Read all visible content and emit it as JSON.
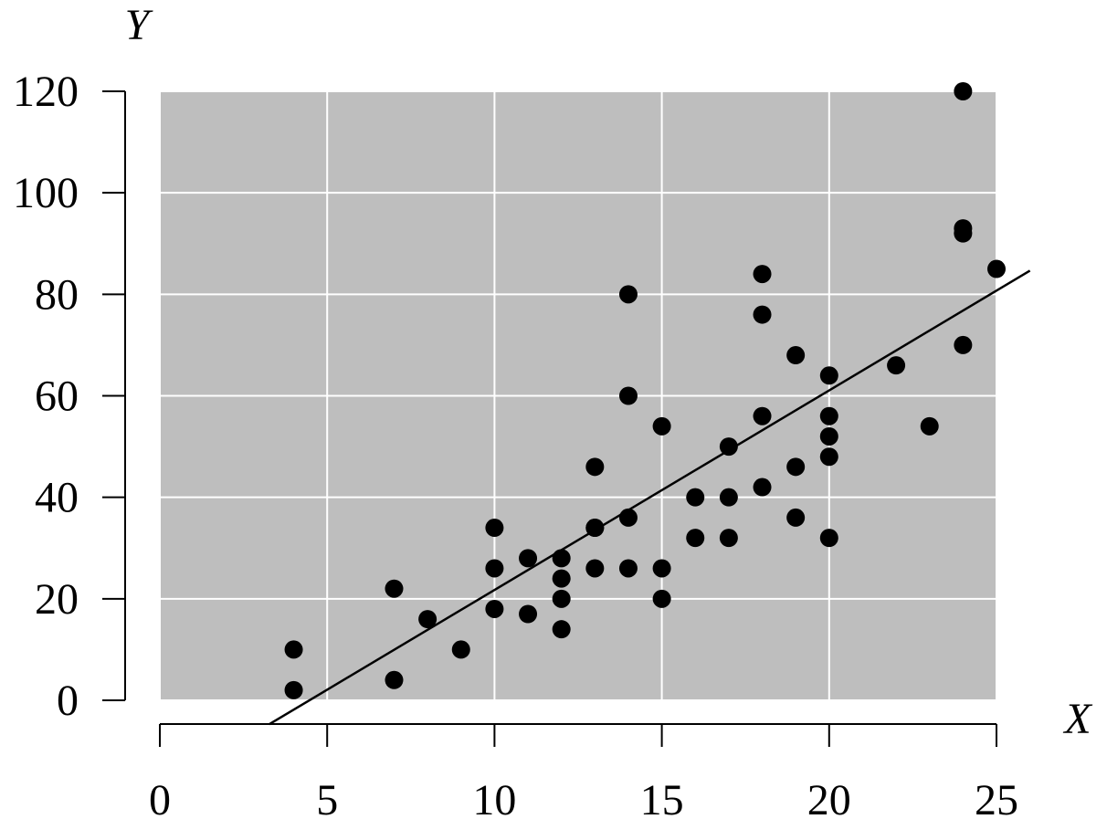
{
  "chart_data": {
    "type": "scatter",
    "x_label": "X",
    "y_label": "Y",
    "x": [
      4,
      4,
      7,
      7,
      8,
      9,
      10,
      10,
      10,
      11,
      11,
      12,
      12,
      12,
      12,
      13,
      13,
      13,
      13,
      14,
      14,
      14,
      14,
      15,
      15,
      15,
      16,
      16,
      17,
      17,
      17,
      18,
      18,
      18,
      18,
      19,
      19,
      19,
      20,
      20,
      20,
      20,
      20,
      22,
      23,
      24,
      24,
      24,
      24,
      25
    ],
    "y": [
      2,
      10,
      4,
      22,
      16,
      10,
      18,
      26,
      34,
      17,
      28,
      14,
      20,
      24,
      28,
      26,
      34,
      34,
      46,
      26,
      36,
      60,
      80,
      20,
      26,
      54,
      32,
      40,
      32,
      40,
      50,
      42,
      56,
      76,
      84,
      36,
      46,
      68,
      32,
      48,
      52,
      56,
      64,
      66,
      54,
      70,
      92,
      93,
      120,
      85
    ],
    "color": "#000000",
    "trend_line": {
      "x": [
        3.27,
        26
      ],
      "y": [
        -4.72,
        84.65
      ],
      "color": "#000000"
    },
    "xlim": [
      0,
      25
    ],
    "ylim": [
      0,
      120
    ],
    "xticks": [
      0,
      5,
      10,
      15,
      20,
      25
    ],
    "yticks": [
      0,
      20,
      40,
      60,
      80,
      100,
      120
    ],
    "grid": true,
    "background": "#bebebe"
  }
}
